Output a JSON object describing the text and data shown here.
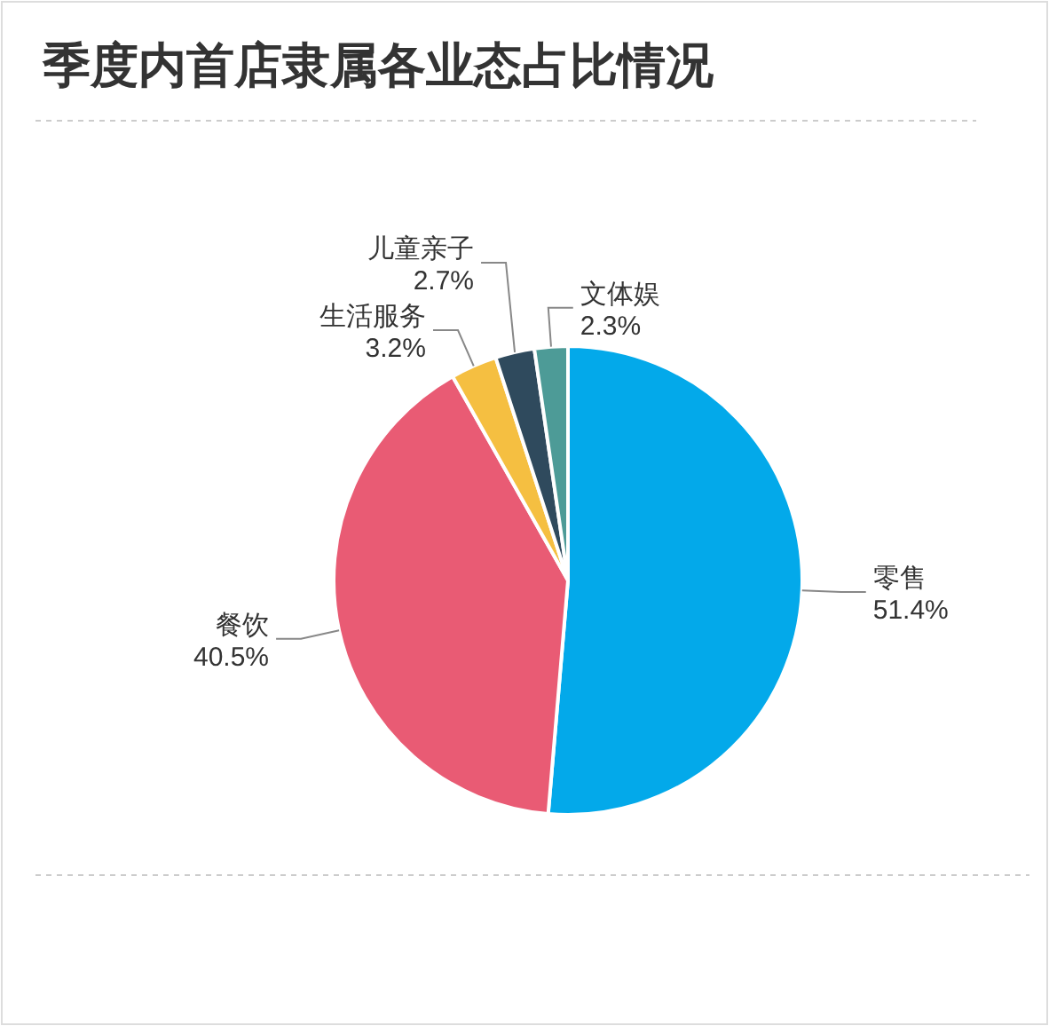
{
  "chart_data": {
    "type": "pie",
    "title": "季度内首店隶属各业态占比情况",
    "categories": [
      "零售",
      "餐饮",
      "生活服务",
      "儿童亲子",
      "文体娱"
    ],
    "values": [
      51.4,
      40.5,
      3.2,
      2.7,
      2.3
    ],
    "value_labels": [
      "51.4%",
      "40.5%",
      "3.2%",
      "2.7%",
      "2.3%"
    ],
    "colors": [
      "#03a9ea",
      "#e95b74",
      "#f5bf41",
      "#2f4a5d",
      "#4d9b97"
    ],
    "legend": false
  }
}
